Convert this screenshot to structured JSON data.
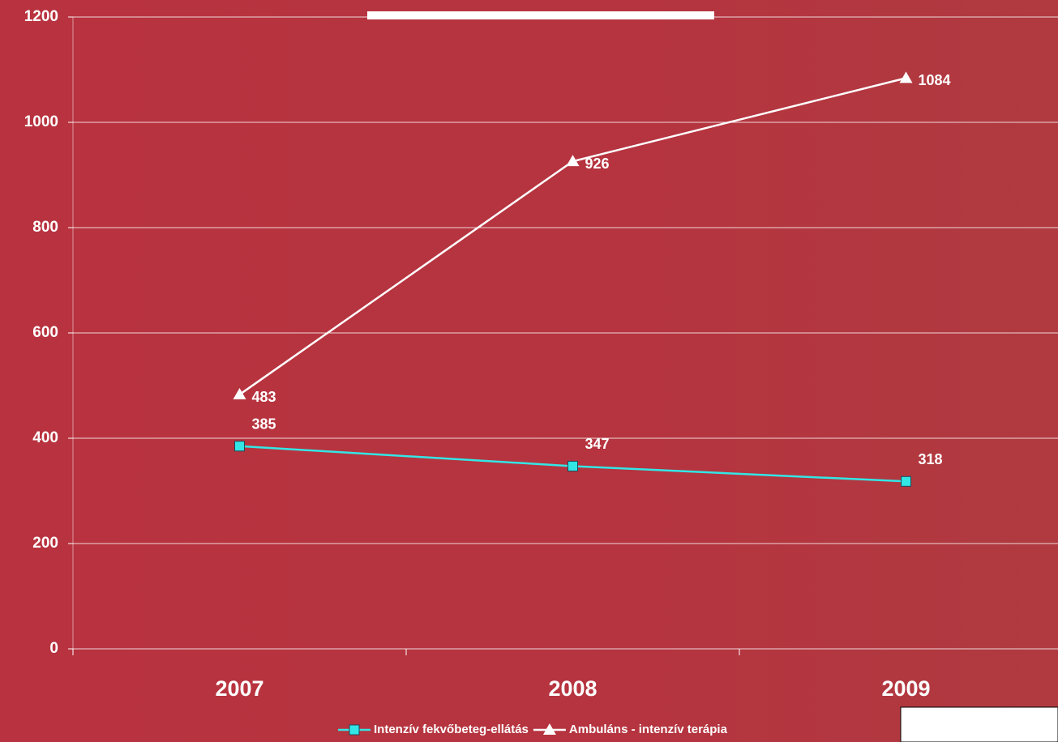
{
  "chart_data": {
    "type": "line",
    "categories": [
      "2007",
      "2008",
      "2009"
    ],
    "series": [
      {
        "name": "Intenzív fekvőbeteg-ellátás",
        "color": "#33e6e6",
        "marker": "square",
        "values": [
          385,
          347,
          318
        ]
      },
      {
        "name": "Ambuláns - intenzív terápia",
        "color": "#ffffff",
        "marker": "triangle",
        "values": [
          483,
          926,
          1084
        ]
      }
    ],
    "ylim": [
      0,
      1200
    ],
    "yticks": [
      0,
      200,
      400,
      600,
      800,
      1000,
      1200
    ],
    "grid": true,
    "legend": "bottom"
  }
}
